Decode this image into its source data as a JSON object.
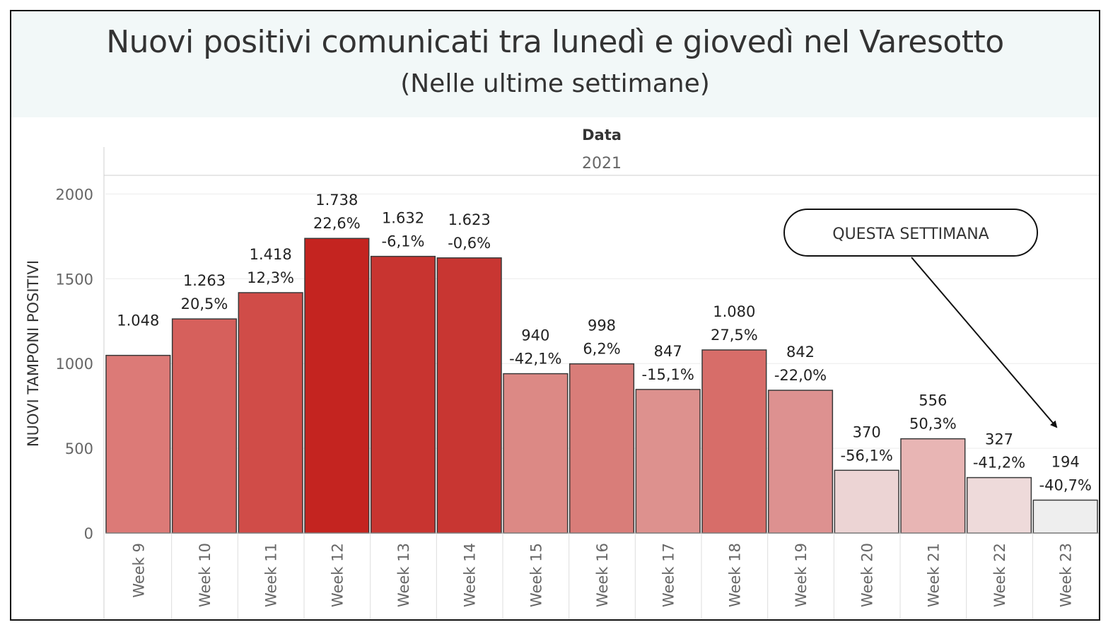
{
  "title": "Nuovi positivi comunicati tra lunedì e giovedì nel Varesotto",
  "subtitle": "(Nelle ultime settimane)",
  "column_header": "Data",
  "year_header": "2021",
  "callout": "QUESTA SETTIMANA",
  "chart_data": {
    "type": "bar",
    "ylabel": "NUOVI TAMPONI POSITIVI",
    "xlabel": "",
    "ylim": [
      0,
      2200
    ],
    "yticks": [
      0,
      500,
      1000,
      1500,
      2000
    ],
    "grid": true,
    "categories": [
      "Week 9",
      "Week 10",
      "Week 11",
      "Week 12",
      "Week 13",
      "Week 14",
      "Week 15",
      "Week 16",
      "Week 17",
      "Week 18",
      "Week 19",
      "Week 20",
      "Week 21",
      "Week 22",
      "Week 23"
    ],
    "values": [
      1048,
      1263,
      1418,
      1738,
      1632,
      1623,
      940,
      998,
      847,
      1080,
      842,
      370,
      556,
      327,
      194
    ],
    "value_labels": [
      "1.048",
      "1.263",
      "1.418",
      "1.738",
      "1.632",
      "1.623",
      "940",
      "998",
      "847",
      "1.080",
      "842",
      "370",
      "556",
      "327",
      "194"
    ],
    "pct_labels": [
      "",
      "20,5%",
      "12,3%",
      "22,6%",
      "-6,1%",
      "-0,6%",
      "-42,1%",
      "6,2%",
      "-15,1%",
      "27,5%",
      "-22,0%",
      "-56,1%",
      "50,3%",
      "-41,2%",
      "-40,7%"
    ],
    "colors": [
      "#dc7a77",
      "#d6605c",
      "#d04c48",
      "#c42420",
      "#c83430",
      "#c83632",
      "#dc8985",
      "#d97d79",
      "#dd918e",
      "#d76d69",
      "#dd9190",
      "#ecd4d4",
      "#e8b5b4",
      "#eedada",
      "#eeeeee"
    ]
  }
}
